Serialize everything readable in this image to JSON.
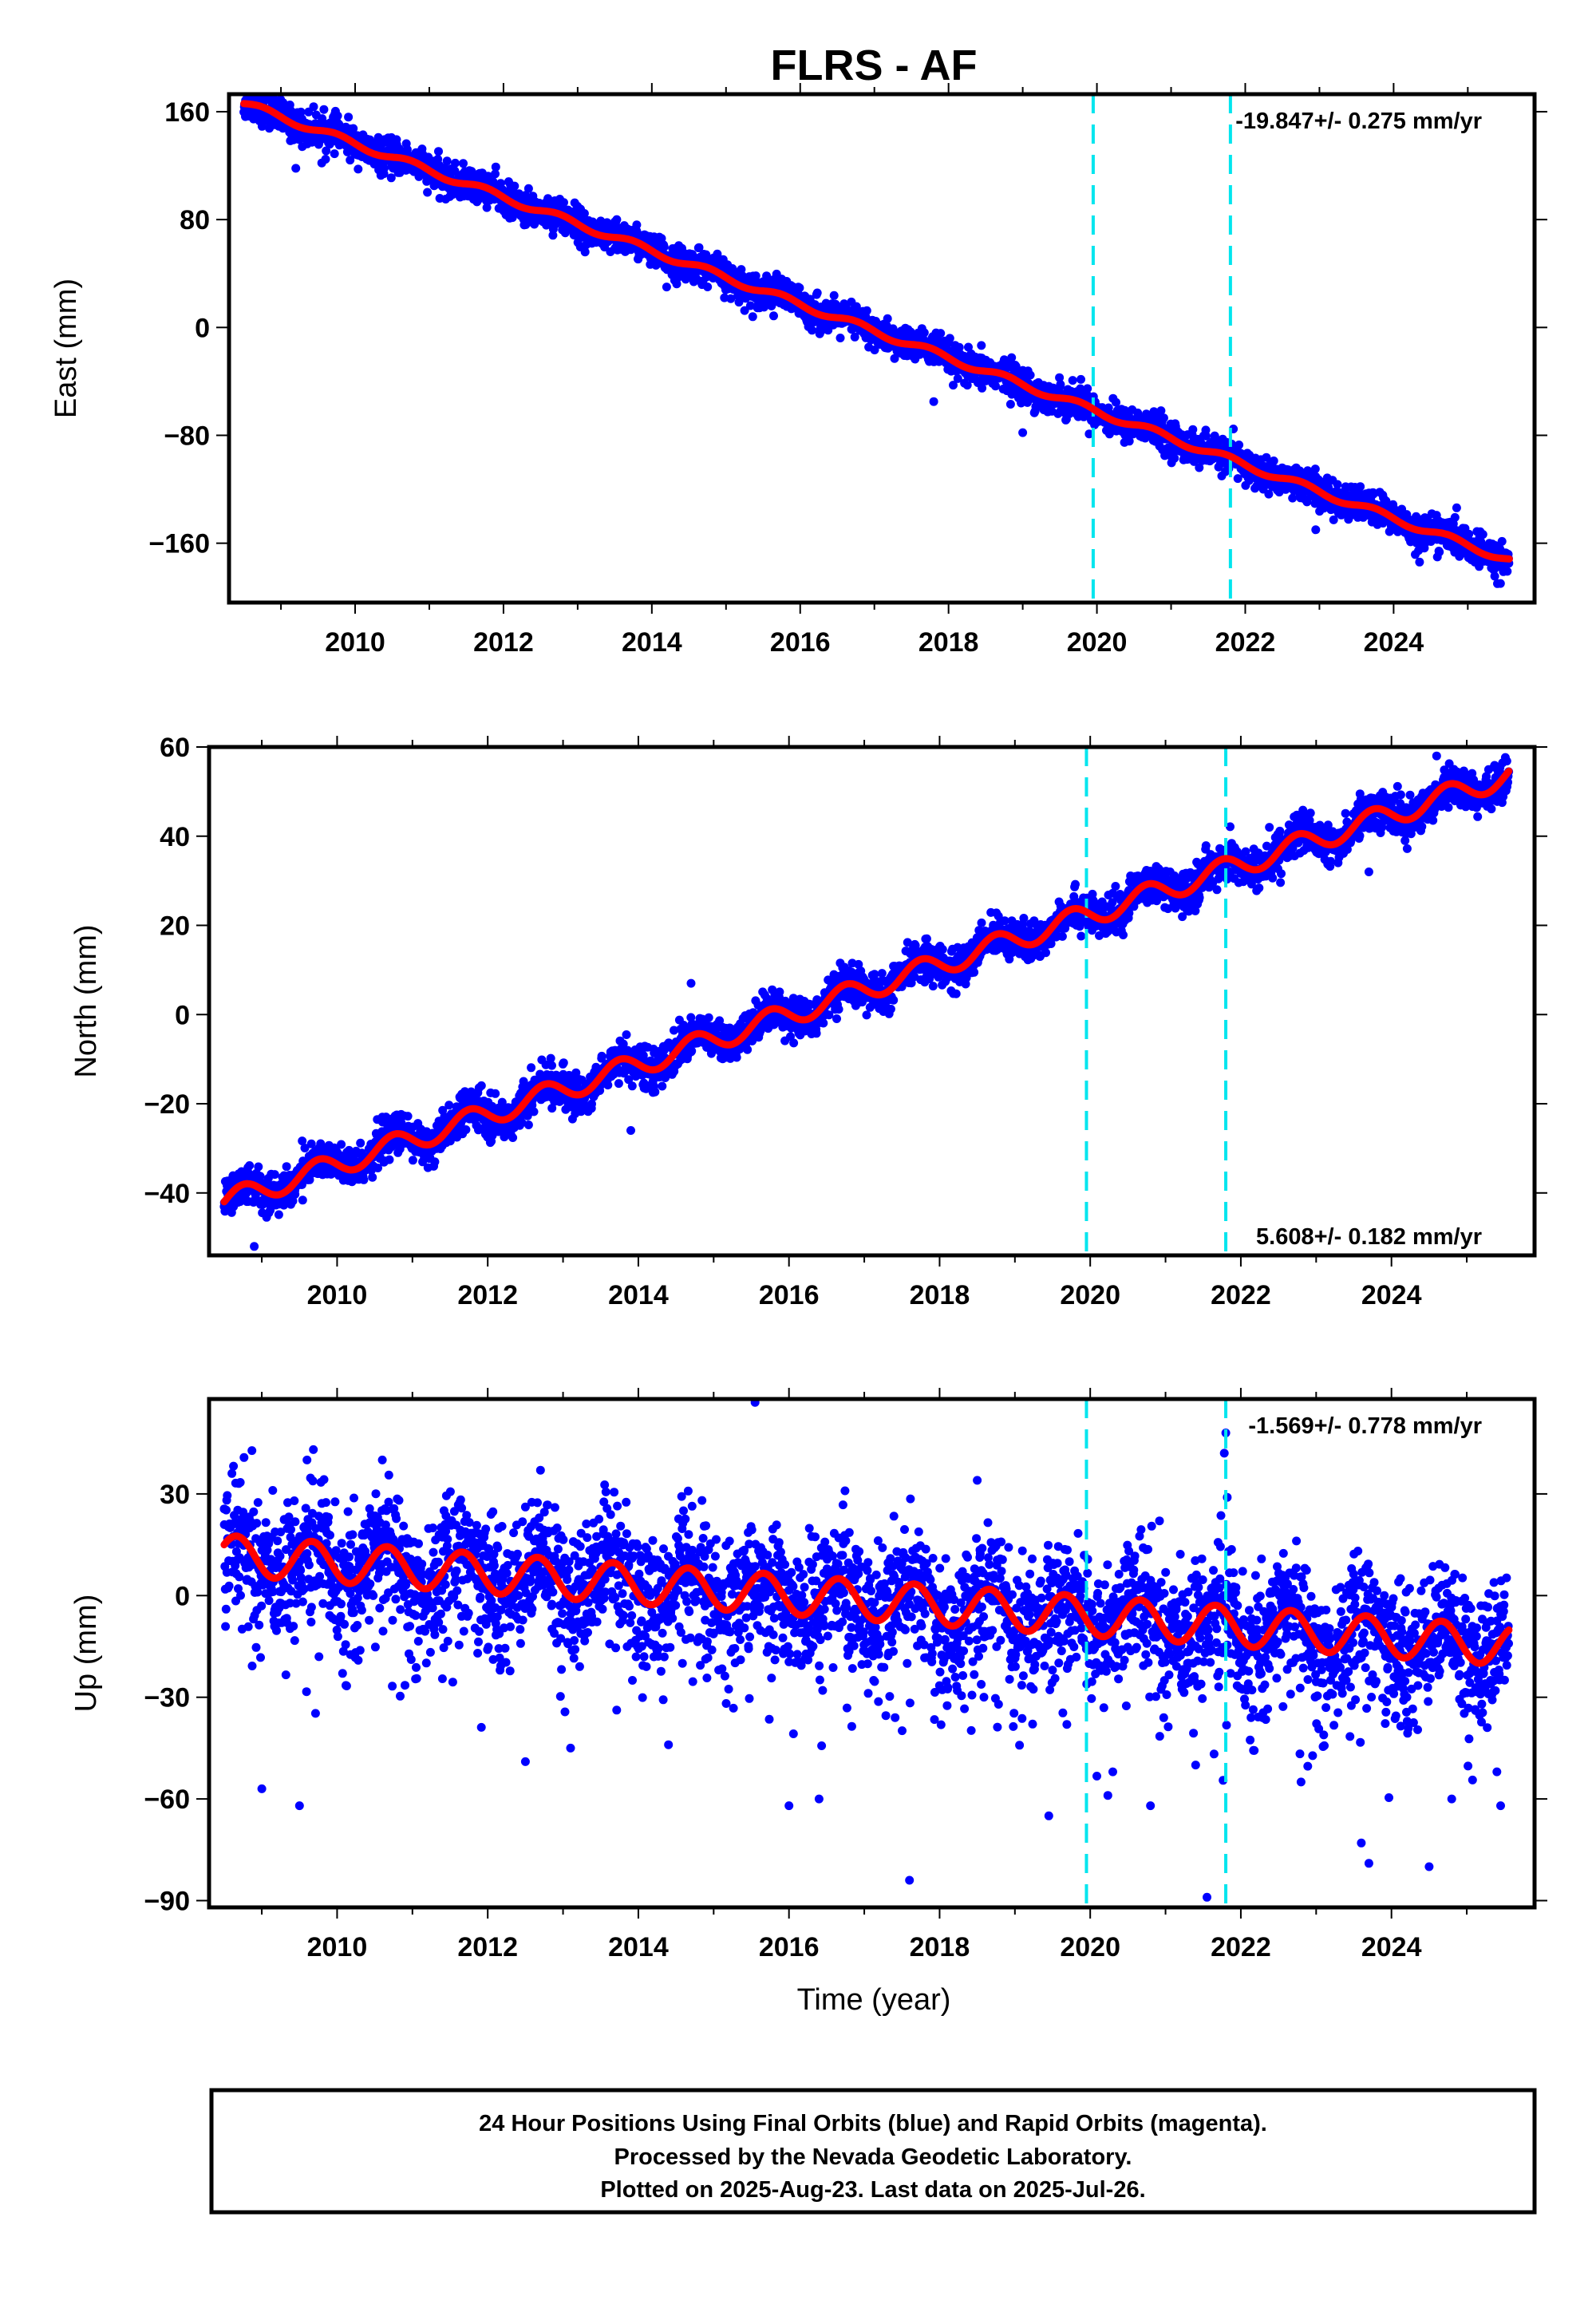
{
  "title": "FLRS - AF",
  "xlabel": "Time (year)",
  "footer": {
    "line1": "24 Hour Positions Using Final Orbits (blue) and Rapid Orbits (magenta).",
    "line2": "Processed by the Nevada Geodetic Laboratory.",
    "line3": "Plotted on 2025-Aug-23. Last data on 2025-Jul-26."
  },
  "colors": {
    "final_orbits": "#0000ff",
    "trend": "#ff0000",
    "event_lines": "#00e5ee",
    "frame": "#000000"
  },
  "chart_data": [
    {
      "type": "scatter",
      "name": "east",
      "ylabel": "East (mm)",
      "rate_label": "-19.847+/- 0.275 mm/yr",
      "rate_position": "top-right",
      "xlim": [
        2008.3,
        2025.9
      ],
      "ylim": [
        -204,
        173
      ],
      "yticks": [
        160,
        80,
        0,
        -80,
        -160
      ],
      "yticklabels": [
        "160",
        "80",
        "0",
        "−80",
        "−160"
      ],
      "xticks": [
        2010,
        2012,
        2014,
        2016,
        2018,
        2020,
        2022,
        2024
      ],
      "xticklabels": [
        "2010",
        "2012",
        "2014",
        "2016",
        "2018",
        "2020",
        "2022",
        "2024"
      ],
      "event_lines_x": [
        2019.95,
        2021.8
      ],
      "data_range_x": [
        2008.5,
        2025.56
      ],
      "model": {
        "slope": -19.847,
        "value_2017": -12,
        "step_2016_5": -8,
        "annual_sin": 2.5,
        "annual_cos": 0,
        "start": 166
      },
      "scatter_spread": 6,
      "outliers": [
        [
          2009.2,
          118
        ],
        [
          2009.55,
          122
        ],
        [
          2013.1,
          56
        ],
        [
          2014.2,
          30
        ],
        [
          2022.95,
          -150
        ],
        [
          2024.35,
          -174
        ],
        [
          2025.4,
          -190
        ],
        [
          2021.9,
          -112
        ],
        [
          2017.8,
          -55
        ],
        [
          2019.0,
          -78
        ]
      ],
      "grid": false
    },
    {
      "type": "scatter",
      "name": "north",
      "ylabel": "North (mm)",
      "rate_label": "5.608+/- 0.182 mm/yr",
      "rate_position": "bottom-right",
      "xlim": [
        2008.3,
        2025.9
      ],
      "ylim": [
        -54,
        60
      ],
      "yticks": [
        60,
        40,
        20,
        0,
        -20,
        -40
      ],
      "yticklabels": [
        "60",
        "40",
        "20",
        "0",
        "−20",
        "−40"
      ],
      "xticks": [
        2010,
        2012,
        2014,
        2016,
        2018,
        2020,
        2022,
        2024
      ],
      "xticklabels": [
        "2010",
        "2012",
        "2014",
        "2016",
        "2018",
        "2020",
        "2022",
        "2024"
      ],
      "event_lines_x": [
        2019.95,
        2021.8
      ],
      "data_range_x": [
        2008.5,
        2025.56
      ],
      "model": {
        "slope": 5.608,
        "value_2017": 0,
        "step_2016_5": 0,
        "annual_sin": 2.5,
        "annual_cos": 0,
        "start": -42
      },
      "scatter_spread": 2.2,
      "outliers": [
        [
          2014.7,
          7
        ],
        [
          2008.9,
          -52
        ],
        [
          2013.9,
          -26
        ],
        [
          2020.8,
          30
        ],
        [
          2024.6,
          58
        ],
        [
          2023.7,
          32
        ],
        [
          2010.6,
          -23
        ]
      ],
      "grid": false
    },
    {
      "type": "scatter",
      "name": "up",
      "ylabel": "Up (mm)",
      "rate_label": "-1.569+/- 0.778 mm/yr",
      "rate_position": "top-right",
      "xlim": [
        2008.3,
        2025.9
      ],
      "ylim": [
        -92,
        58
      ],
      "yticks": [
        30,
        0,
        -30,
        -60,
        -90
      ],
      "yticklabels": [
        "30",
        "0",
        "−30",
        "−60",
        "−90"
      ],
      "xticks": [
        2010,
        2012,
        2014,
        2016,
        2018,
        2020,
        2022,
        2024
      ],
      "xticklabels": [
        "2010",
        "2012",
        "2014",
        "2016",
        "2018",
        "2020",
        "2022",
        "2024"
      ],
      "event_lines_x": [
        2019.95,
        2021.8
      ],
      "data_range_x": [
        2008.5,
        2025.56
      ],
      "model": {
        "slope": -1.569,
        "value_2017": -1,
        "step_2016_5": 0,
        "annual_sin": 5,
        "annual_cos": 3,
        "start": 12
      },
      "scatter_spread": 9,
      "outliers": [
        [
          2015.55,
          57
        ],
        [
          2009.0,
          -57
        ],
        [
          2009.5,
          -62
        ],
        [
          2017.6,
          -84
        ],
        [
          2021.55,
          -89
        ],
        [
          2021.8,
          48
        ],
        [
          2021.78,
          42
        ],
        [
          2021.82,
          29
        ],
        [
          2024.5,
          -80
        ],
        [
          2023.6,
          -73
        ],
        [
          2023.7,
          -79
        ],
        [
          2019.45,
          -65
        ],
        [
          2020.8,
          -62
        ],
        [
          2016.0,
          -62
        ],
        [
          2016.4,
          -60
        ],
        [
          2018.5,
          34
        ],
        [
          2009.6,
          40
        ],
        [
          2010.6,
          40
        ],
        [
          2012.7,
          37
        ],
        [
          2013.1,
          -45
        ],
        [
          2012.5,
          -49
        ],
        [
          2014.4,
          -44
        ],
        [
          2020.3,
          -52
        ],
        [
          2021.4,
          -50
        ],
        [
          2022.8,
          -55
        ],
        [
          2024.8,
          -60
        ],
        [
          2025.4,
          -52
        ],
        [
          2025.45,
          -62
        ]
      ],
      "grid": false
    }
  ]
}
